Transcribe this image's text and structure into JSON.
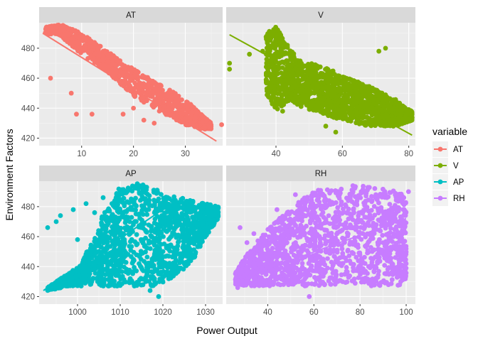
{
  "chart_data": {
    "type": "scatter",
    "xlabel": "Power Output",
    "ylabel": "Environment Factors",
    "legend": {
      "title": "variable",
      "position": "right"
    },
    "grid": true,
    "panels": [
      {
        "name": "AT",
        "color": "#F8766D",
        "xlim": [
          1.8,
          37.2
        ],
        "xticks": [
          10,
          20,
          30
        ],
        "trend": [
          [
            2.5,
            490
          ],
          [
            36,
            418
          ]
        ],
        "band": [
          [
            3,
            490,
            494
          ],
          [
            6,
            488,
            496
          ],
          [
            10,
            476,
            490
          ],
          [
            15,
            464,
            478
          ],
          [
            20,
            448,
            466
          ],
          [
            25,
            438,
            456
          ],
          [
            30,
            429,
            446
          ],
          [
            33,
            426,
            436
          ],
          [
            35,
            426,
            430
          ]
        ],
        "outliers": [
          [
            4,
            460
          ],
          [
            9,
            436
          ],
          [
            8,
            450
          ],
          [
            22,
            432
          ],
          [
            24,
            430
          ],
          [
            18,
            436
          ],
          [
            20,
            440
          ],
          [
            12,
            436
          ],
          [
            37,
            429
          ],
          [
            31,
            431
          ]
        ]
      },
      {
        "name": "V",
        "color": "#7CAE00",
        "xlim": [
          25,
          82
        ],
        "xticks": [
          40,
          60,
          80
        ],
        "trend": [
          [
            26,
            489
          ],
          [
            81,
            422
          ]
        ],
        "band": [
          [
            37,
            450,
            490
          ],
          [
            40,
            438,
            495
          ],
          [
            44,
            445,
            480
          ],
          [
            48,
            440,
            470
          ],
          [
            52,
            438,
            470
          ],
          [
            56,
            434,
            466
          ],
          [
            60,
            432,
            462
          ],
          [
            64,
            430,
            458
          ],
          [
            68,
            428,
            455
          ],
          [
            72,
            428,
            450
          ],
          [
            76,
            428,
            446
          ],
          [
            79,
            430,
            440
          ],
          [
            81,
            432,
            438
          ]
        ],
        "outliers": [
          [
            26,
            470
          ],
          [
            26,
            466
          ],
          [
            32,
            476
          ],
          [
            36,
            478
          ],
          [
            42,
            438
          ],
          [
            55,
            428
          ],
          [
            58,
            424
          ],
          [
            73,
            480
          ],
          [
            71,
            478
          ]
        ]
      },
      {
        "name": "AP",
        "color": "#00BFC4",
        "xlim": [
          991,
          1034
        ],
        "xticks": [
          1000,
          1010,
          1020,
          1030
        ],
        "trend": [
          [
            992,
            424
          ],
          [
            1022,
            482
          ]
        ],
        "band": [
          [
            993,
            424,
            426
          ],
          [
            998,
            427,
            436
          ],
          [
            1001,
            427,
            442
          ],
          [
            1005,
            427,
            470
          ],
          [
            1008,
            427,
            484
          ],
          [
            1010,
            427,
            494
          ],
          [
            1014,
            427,
            496
          ],
          [
            1018,
            427,
            494
          ],
          [
            1021,
            430,
            488
          ],
          [
            1024,
            436,
            486
          ],
          [
            1027,
            444,
            484
          ],
          [
            1030,
            460,
            482
          ],
          [
            1033,
            472,
            480
          ]
        ],
        "outliers": [
          [
            993,
            466
          ],
          [
            995,
            470
          ],
          [
            996,
            474
          ],
          [
            999,
            478
          ],
          [
            1002,
            482
          ],
          [
            1004,
            476
          ],
          [
            1000,
            458
          ],
          [
            1006,
            486
          ],
          [
            1019,
            420
          ],
          [
            1017,
            424
          ],
          [
            1031,
            466
          ],
          [
            1026,
            452
          ]
        ]
      },
      {
        "name": "RH",
        "color": "#C77CFF",
        "xlim": [
          22,
          104
        ],
        "xticks": [
          40,
          60,
          80,
          100
        ],
        "trend": [
          [
            28,
            432
          ],
          [
            100,
            472
          ]
        ],
        "band": [
          [
            26,
            428,
            436
          ],
          [
            30,
            427,
            446
          ],
          [
            36,
            427,
            458
          ],
          [
            42,
            427,
            468
          ],
          [
            48,
            427,
            476
          ],
          [
            54,
            427,
            484
          ],
          [
            60,
            427,
            490
          ],
          [
            66,
            427,
            493
          ],
          [
            74,
            427,
            494
          ],
          [
            82,
            427,
            494
          ],
          [
            90,
            427,
            492
          ],
          [
            96,
            427,
            490
          ],
          [
            100,
            430,
            488
          ]
        ],
        "outliers": [
          [
            27,
            426
          ],
          [
            28,
            466
          ],
          [
            31,
            456
          ],
          [
            34,
            462
          ],
          [
            44,
            478
          ],
          [
            52,
            488
          ],
          [
            58,
            420
          ],
          [
            100,
            442
          ],
          [
            101,
            490
          ]
        ]
      }
    ],
    "ylim": [
      415,
      497
    ],
    "yticks": [
      420,
      440,
      460,
      480
    ],
    "panel_bg": "#EBEBEB",
    "strip_bg": "#D9D9D9"
  }
}
